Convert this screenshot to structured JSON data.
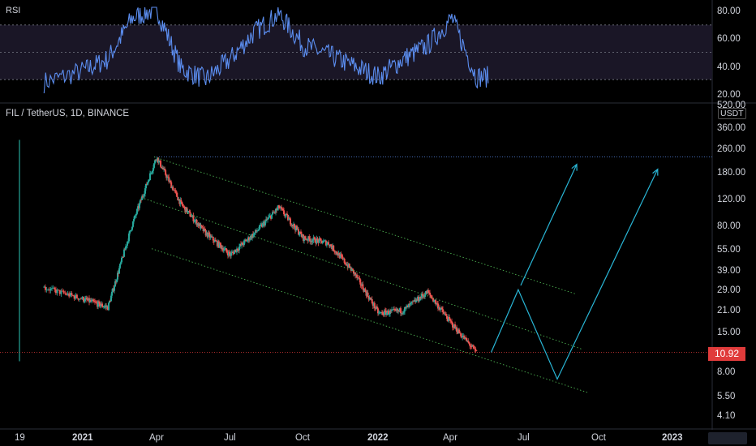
{
  "rsi_panel": {
    "title": "RSI",
    "y_ticks": [
      "80.00",
      "60.00",
      "40.00",
      "20.00"
    ],
    "level_lines": [
      70,
      50,
      30
    ]
  },
  "price_panel": {
    "symbol_title": "FIL / TetherUS, 1D, BINANCE",
    "currency_badge": "USDT",
    "last_price": "10.92",
    "y_ticks": [
      "520.00",
      "360.00",
      "260.00",
      "180.00",
      "120.00",
      "80.00",
      "55.00",
      "39.00",
      "29.00",
      "21.00",
      "15.00",
      "10.92",
      "8.00",
      "5.50",
      "4.10"
    ]
  },
  "x_axis": {
    "labels": [
      {
        "text": "19",
        "bold": false
      },
      {
        "text": "2021",
        "bold": true
      },
      {
        "text": "Apr",
        "bold": false
      },
      {
        "text": "Jul",
        "bold": false
      },
      {
        "text": "Oct",
        "bold": false
      },
      {
        "text": "2022",
        "bold": true
      },
      {
        "text": "Apr",
        "bold": false
      },
      {
        "text": "Jul",
        "bold": false
      },
      {
        "text": "Oct",
        "bold": false
      },
      {
        "text": "2023",
        "bold": true
      }
    ]
  },
  "colors": {
    "background": "#000000",
    "up_candle": "#26a69a",
    "down_candle": "#ef5350",
    "rsi_line": "#5b8def",
    "projection": "#29b6d6",
    "channel": "#4caf50",
    "price_tag": "#e03b3b"
  },
  "chart_data": [
    {
      "type": "line",
      "title": "RSI",
      "ylim": [
        20,
        80
      ],
      "levels": [
        70,
        50,
        30
      ],
      "x": [
        "2020-12",
        "2021-02",
        "2021-03",
        "2021-04",
        "2021-05",
        "2021-06",
        "2021-07",
        "2021-08",
        "2021-09",
        "2021-10",
        "2021-11",
        "2021-12",
        "2022-01",
        "2022-02",
        "2022-03",
        "2022-04",
        "2022-05"
      ],
      "series": [
        {
          "name": "RSI",
          "values": [
            28,
            45,
            75,
            82,
            38,
            30,
            45,
            65,
            78,
            55,
            48,
            40,
            32,
            45,
            55,
            75,
            32
          ]
        }
      ]
    },
    {
      "type": "line",
      "title": "FIL / TetherUS, 1D, BINANCE",
      "y_scale": "log",
      "ylim": [
        4.1,
        520
      ],
      "x": [
        "2020-12",
        "2021-01",
        "2021-02",
        "2021-03",
        "2021-04",
        "2021-05",
        "2021-06",
        "2021-07",
        "2021-08",
        "2021-09",
        "2021-10",
        "2021-11",
        "2021-12",
        "2022-01",
        "2022-02",
        "2022-03",
        "2022-04",
        "2022-05"
      ],
      "series": [
        {
          "name": "FIL/USDT",
          "values": [
            30,
            25,
            22,
            80,
            230,
            110,
            70,
            50,
            70,
            105,
            65,
            60,
            38,
            20,
            21,
            28,
            17,
            10.92
          ]
        }
      ],
      "last_price": 10.92
    }
  ]
}
